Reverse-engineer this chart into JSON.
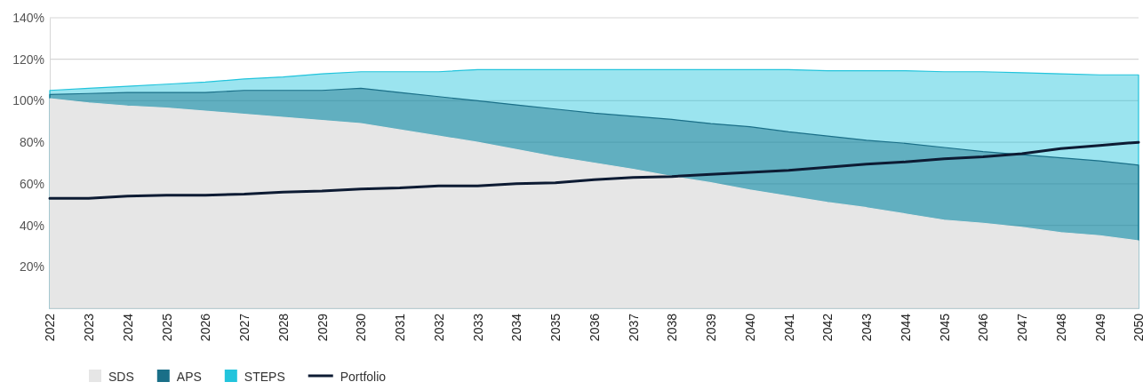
{
  "chart_data": {
    "type": "area",
    "categories": [
      "2022",
      "2023",
      "2024",
      "2025",
      "2026",
      "2027",
      "2028",
      "2029",
      "2030",
      "2031",
      "2032",
      "2033",
      "2034",
      "2035",
      "2036",
      "2037",
      "2038",
      "2039",
      "2040",
      "2041",
      "2042",
      "2043",
      "2044",
      "2045",
      "2046",
      "2047",
      "2048",
      "2049",
      "2050"
    ],
    "ylim": [
      0,
      140
    ],
    "yticks": [
      {
        "value": 20,
        "label": "20%"
      },
      {
        "value": 40,
        "label": "40%"
      },
      {
        "value": 60,
        "label": "60%"
      },
      {
        "value": 80,
        "label": "80%"
      },
      {
        "value": 100,
        "label": "100%"
      },
      {
        "value": 120,
        "label": "120%"
      },
      {
        "value": 140,
        "label": "140%"
      }
    ],
    "grid": "y",
    "legend": "bottom left",
    "series": [
      {
        "name": "SDS",
        "color": "#e6e6e6",
        "values": [
          101,
          99,
          97.5,
          96.5,
          95,
          93.5,
          92,
          90.5,
          89,
          86,
          83,
          80,
          76.5,
          73,
          70,
          67,
          63.5,
          60.5,
          57,
          54,
          51,
          48.5,
          45.5,
          42.5,
          41,
          39,
          36.5,
          35,
          32.5
        ]
      },
      {
        "name": "APS",
        "color": "#1a6f88",
        "values": [
          103,
          103.5,
          104,
          104,
          104,
          105,
          105,
          105,
          106,
          104,
          102,
          100,
          98,
          96,
          94,
          92.5,
          91,
          89,
          87.5,
          85,
          83,
          81,
          79.5,
          77.5,
          75.5,
          74,
          72.5,
          71,
          69
        ]
      },
      {
        "name": "STEPS",
        "color": "#22c4dc",
        "values": [
          105,
          106,
          107,
          108,
          109,
          110.5,
          111.5,
          113,
          114,
          114,
          114,
          115,
          115,
          115,
          115,
          115,
          115,
          115,
          115,
          115,
          114.5,
          114.5,
          114.5,
          114,
          114,
          113.5,
          113,
          112.5,
          112.5
        ]
      },
      {
        "name": "Portfolio",
        "type": "line",
        "color": "#0d1b33",
        "values": [
          53,
          53,
          54,
          54.5,
          54.5,
          55,
          56,
          56.5,
          57.5,
          58,
          59,
          59,
          60,
          60.5,
          62,
          63,
          63.5,
          64.5,
          65.5,
          66.5,
          68,
          69.5,
          70.5,
          72,
          73,
          74.5,
          77,
          78.5,
          80
        ]
      }
    ]
  }
}
